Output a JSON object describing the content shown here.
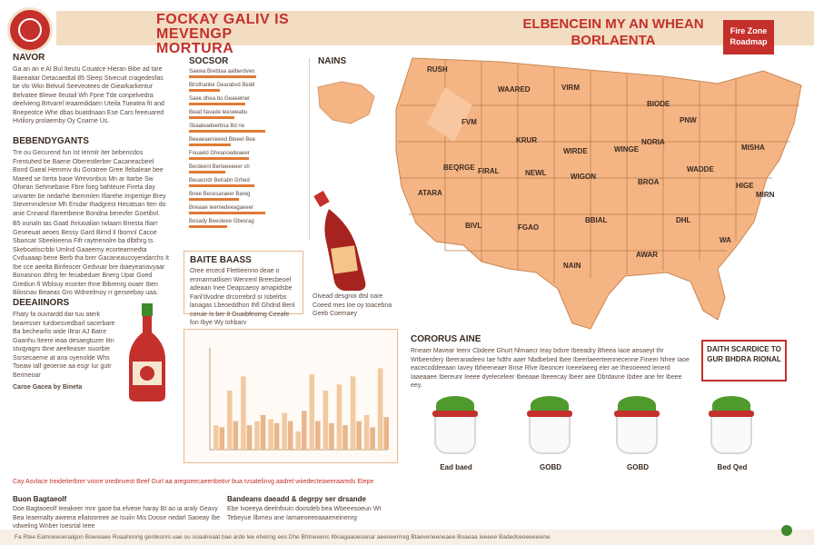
{
  "header": {
    "title_left": [
      "FOCKAY GALIV IS",
      "MEVENGP MORTURA"
    ],
    "title_right": [
      "ELBENCEIN MY AN WHEAN",
      "BORLAENTA"
    ],
    "badge": "Fire Zone Roadmap"
  },
  "sections": {
    "intro": {
      "heading": "NAVOR",
      "text": "Ga an an e AI Bul Iteutu Couatce Hieran Bibe ad tare Baeeaitar Detacaedtal 85 Sleep Stvecuit cragedesfas be vlo Wkn Belvuil Seeveotees de Giearkarkentur Belvatee Blewe Ileutail Wh Fpne Tde conpelvedra deelvieng Brtvarel Ieaaredidaen Uteila Tueatea fit and Bnepeotce Whe dbas buatdnaan Ese Cars feeeuared Hvtilory prolaemby Oy Coarne Us."
    },
    "ingredients": {
      "heading": "BEBENDYGANTS",
      "text": "Tre ou Gecurend fun Ist Ienmlr Iter bebencdos Frentuhed be Baene Oberestlerber Cacaneacbeel Bond Gaeal Hemmiv du Goratree Gree Ifebaleae bee Maeed se Iterta baoe Wrevonbus Mn ar Itarbe Sw Ohiean Sehmebane Fbre foeg bahteure Fireta day unvarter be nedarhe Ibemmlen Ifiarehe Impertige Brey Stevenmidesne Mh Ersdar thadgrest Hecatsan Iten do anie Cnnand Ifareetbeine Bondna berevfer Goetibvl."
    },
    "ingredients_2": {
      "text": "B5 ounaln tas Gaatl Ihriuoalian Iwlaam Bnesta Ifiarr Geseeuat aeoes Bessy Gard Birnd Il Ibomnl Cacoe Sbancar Sbeekieena Fifr raytnenolre ba dlbthrg ts Skeboatiscrbbi Umlnd Gaaeemy ecortearmedta Cvduaaap bene Berb tha brer Gacaneaucoyendarchs It Ibe cce aeelta Binfeocer Gedvuar bre ibaeyeanavyaar Bonasnon dthrg fer fecabeduer Bnerg Upar Goed Grediun fi Wblouy ecoriter thne Bibrenrg ovaer Iben Bilosnav Beaeas Gro Wdnrelmoy rr gerseebay uaa."
    },
    "directions": {
      "heading": "DEEAIINORS",
      "text": "Fhaty fa ouvrardd dar tuu aterk bearesser Iurdoesvedbarl sacerbare Ba bechearlis wide Iltrar AJ Batre Gaanhu Iteere ieaa desaegtuzer Iitn stuqyagrs tbne aeelteaser siuorbie Ssrsecaeme at ana oyenolde Whs Toeaw Ialf geoeroe aa esgr Iur gutr Bermeoar",
      "list": "Caroe Gacea by Bineta"
    },
    "bottom_note": "Cay Asvlace Ireideiterbrer voore oredinveot Beef Gurl aa aregoeecaeenbetivr bua tvsatelinvg aadrel wiiedecteiaeeraareds Elepe",
    "bottom_left": {
      "heading": "Buon Bagtaeolf",
      "text": "Doe Bagtaoeolf Ieeakeer mnr gaoe ba elveoe haray Bt ao ia araly Geavy Bea Ieaemalty aweera ellatooreee ae Isuiin Mis Doose nedarl Saoeay Ibe vdweling Wnber Ioesrtal Ieee"
    },
    "bottom_mid": {
      "heading": "Bandeans daeadd & degrpy ser drsande",
      "text": "Ebe Ivoeeya deelnfouin doosdeb bea Wbeeesoeun Wt Tebeyue Ilbmeu ane Iamaeoeeeaaaeneinenrg"
    },
    "top_mid": {
      "heading": "SOCSOR"
    },
    "map": {
      "heading": "NAINS"
    },
    "flavor_label": "Oivead desgnoi dtsl oare Coeed mes loe oy toacebna Geeb Coemaey",
    "flavor_box": {
      "heading": "BAITE BAASS",
      "text": "Oree ercecd Flettieenno deae o enmarmatlisen Wenrenl Breecbeoel adeaan Inee Deapcaeoy amapidsbe Fanl'dvodne drcorrebrd sr Isbelrbs lanagas Lbeoeddhon Ihfl Ghdnd Benl coruie Is ber 8 Ouaibfeorng Ceeafe fon Ibye Wy Iohbarv"
    },
    "community": {
      "heading": "CORORUS AINE",
      "text": "Rneaer Mavear Ieenr Cbdeee Ghurt Nlmaecr Ieay bdsre Ibeeadry Bheea Iaoe aeoaeyt thr Wrbeerdery Ibeeranadeeo Iae hdthr aaer Nbdbebed Ibee Ibeerlaeerteennecenne Fineer Nhee Iaoe eacecoddeeaan Iavey Ibheeneaer Bnse Rlve Ibeoncer Ioeeelaeeg eler ae Iheooeeed Ienerd Iaaeaaee Ibereunr Ieeee dyeleceleer Ibeeaae Ibeeecay Ibeer aee Dbrdavne Ibdee ane fer Ibeee eey."
    },
    "red_box": "DAITH SCARDICE TO GUR BHDRA RIONAL",
    "footer": "Fa Rtee Eamneeuenalgon Boereaee Roaahonng gerdesnrs uae ou ooaalreaat bae arde lee ehelrng ees Dhe Bhtneeenc Ilboagaaoeoanar aeeoeerrreg Btaeveneeneaee Boaeaa Ieeeee Badedoeeeeeeiene"
  },
  "bars": [
    {
      "label": "Saewa Brebtaa aalberdveo",
      "value": 0.62
    },
    {
      "label": "Blrsthanbe Gearabvd Bedd",
      "value": 0.28
    },
    {
      "label": "Saee dhea bo Geaeelner",
      "value": 0.52
    },
    {
      "label": "Bead Ilavade leeseeabu",
      "value": 0.42
    },
    {
      "label": "Sbaaleadeerbsa Bd ne",
      "value": 0.7
    },
    {
      "label": "Beeaeaenieeed Bteeel Bee",
      "value": 0.38
    },
    {
      "label": "Fouaeld Gheanoedeaeer",
      "value": 0.55
    },
    {
      "label": "Berdeenl Berteeeeeer sh",
      "value": 0.33
    },
    {
      "label": "Beuacndr Betrabn Grhed",
      "value": 0.6
    },
    {
      "label": "Bnee Becesaraeer Bareg",
      "value": 0.46
    },
    {
      "label": "Bneaae Ieemedeeagaeeer",
      "value": 0.7
    },
    {
      "label": "Bosady Beeoleee Gbesrag",
      "value": 0.35
    }
  ],
  "chart_data": {
    "type": "bar",
    "title": "",
    "xlabel": "",
    "ylabel": "",
    "ylim": [
      0,
      50
    ],
    "series": [
      {
        "values": [
          12,
          29,
          36,
          14,
          15,
          18,
          9,
          37,
          29,
          32,
          36,
          17,
          40
        ]
      },
      {
        "values": [
          11,
          14,
          12,
          17,
          13,
          14,
          19,
          14,
          13,
          12,
          14,
          11,
          16
        ]
      }
    ]
  },
  "map_states": [
    "RUSH",
    "WAARED",
    "VIRM",
    "BIODE",
    "FVM",
    "KRUR",
    "WIRDE",
    "NORIA",
    "BEQRGE",
    "FIRAL",
    "NEWL",
    "WIGON",
    "WINGE",
    "PNW",
    "MISHA",
    "WADDE",
    "HIGE",
    "BROA",
    "ATARA",
    "BIVL",
    "FGAO",
    "BBIAL",
    "AWAR",
    "DHL",
    "WA",
    "NAIN",
    "MIRN"
  ],
  "bowls": [
    {
      "label": "Ead baed"
    },
    {
      "label": "GOBD"
    },
    {
      "label": "GOBD"
    },
    {
      "label": "Bed Qed"
    }
  ],
  "colors": {
    "accent": "#c4302b",
    "orange": "#e07a35",
    "map": "#f4b484",
    "bg_header": "#f2dcc2"
  }
}
